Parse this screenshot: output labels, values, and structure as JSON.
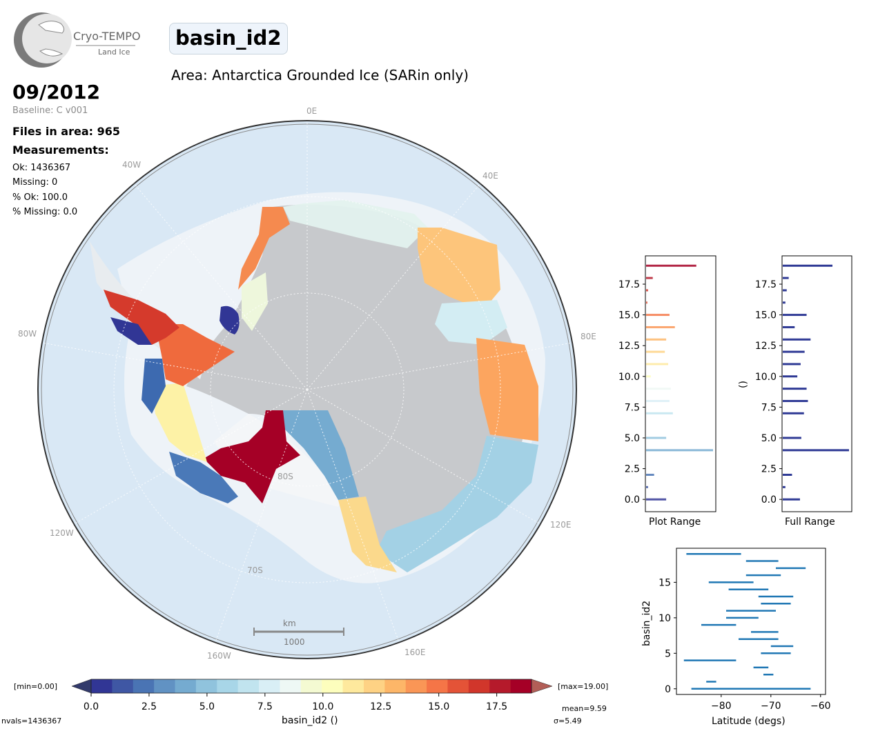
{
  "header": {
    "logo_title": "Cryo-TEMPO",
    "logo_subtitle": "Land Ice",
    "variable": "basin_id2",
    "area": "Area: Antarctica Grounded Ice (SARin only)",
    "date": "09/2012",
    "baseline": "Baseline: C v001",
    "files": "Files in area: 965",
    "measurements_title": "Measurements:",
    "ok": "Ok: 1436367",
    "missing": "Missing: 0",
    "pct_ok": "% Ok: 100.0",
    "pct_missing": "% Missing: 0.0"
  },
  "map": {
    "lon_labels": {
      "lon0": "0E",
      "lon40e": "40E",
      "lon80e": "80E",
      "lon120e": "120E",
      "lon160e": "160E",
      "lon160w": "160W",
      "lon120w": "120W",
      "lon80w": "80W",
      "lon40w": "40W"
    },
    "lat_labels": {
      "lat80": "80S",
      "lat70": "70S"
    },
    "scale_unit": "km",
    "scale_value": "1000",
    "colors": {
      "ocean": "#d9e8f5",
      "ice": "#c7c9cc"
    }
  },
  "colorbar": {
    "min_label": "[min=0.00]",
    "max_label": "[max=19.00]",
    "label": "basin_id2 ()",
    "nvals": "nvals=1436367",
    "mean": "mean=9.59",
    "sigma": "σ=5.49",
    "ticks": [
      "0.0",
      "2.5",
      "5.0",
      "7.5",
      "10.0",
      "12.5",
      "15.0",
      "17.5"
    ],
    "colors": [
      "#313695",
      "#3f57a4",
      "#4a74b4",
      "#6192c3",
      "#75abd0",
      "#90c3dd",
      "#a8d6e8",
      "#c1e4ef",
      "#d9eff6",
      "#eef8f5",
      "#f4fad2",
      "#fdfebd",
      "#fee99d",
      "#fed284",
      "#fdb668",
      "#fa9656",
      "#f57547",
      "#e45337",
      "#d1362b",
      "#b51a2b",
      "#a50026"
    ]
  },
  "chart_data": [
    {
      "type": "bar",
      "title": "",
      "xlabel": "Plot Range",
      "ylabel": "",
      "orientation": "horizontal",
      "categories": [
        0,
        1,
        2,
        3,
        4,
        5,
        6,
        7,
        8,
        9,
        10,
        11,
        12,
        13,
        14,
        15,
        16,
        17,
        18,
        19
      ],
      "values": [
        30,
        3,
        12,
        0,
        100,
        30,
        0,
        40,
        35,
        37,
        7,
        33,
        28,
        30,
        43,
        35,
        2,
        3,
        10,
        75
      ],
      "ylim": [
        -1,
        19.8
      ],
      "yticks": [
        "0.0",
        "2.5",
        "5.0",
        "7.5",
        "10.0",
        "12.5",
        "15.0",
        "17.5"
      ]
    },
    {
      "type": "bar",
      "title": "",
      "xlabel": "Full Range",
      "ylabel": "()",
      "orientation": "horizontal",
      "categories": [
        0,
        1,
        2,
        3,
        4,
        5,
        6,
        7,
        8,
        9,
        10,
        11,
        12,
        13,
        14,
        15,
        16,
        17,
        18,
        19
      ],
      "values": [
        26,
        4,
        14,
        0,
        100,
        28,
        0,
        32,
        38,
        36,
        22,
        27,
        33,
        42,
        18,
        36,
        4,
        6,
        9,
        75
      ],
      "ylim": [
        -1,
        19.8
      ],
      "yticks": [
        "0.0",
        "2.5",
        "5.0",
        "7.5",
        "10.0",
        "12.5",
        "15.0",
        "17.5"
      ]
    },
    {
      "type": "range",
      "title": "",
      "xlabel": "Latitude (degs)",
      "ylabel": "basin_id2",
      "xlim": [
        -89,
        -59
      ],
      "ylim": [
        -0.8,
        19.8
      ],
      "xticks": [
        "−80",
        "−70",
        "−60"
      ],
      "yticks": [
        "0",
        "5",
        "10",
        "15"
      ],
      "ranges": [
        {
          "y": 0,
          "from": -86,
          "to": -62
        },
        {
          "y": 1,
          "from": -83,
          "to": -81
        },
        {
          "y": 2,
          "from": -71.5,
          "to": -69.5
        },
        {
          "y": 3,
          "from": -73.5,
          "to": -70.5
        },
        {
          "y": 4,
          "from": -87.5,
          "to": -77
        },
        {
          "y": 5,
          "from": -72,
          "to": -66
        },
        {
          "y": 6,
          "from": -70,
          "to": -65.5
        },
        {
          "y": 7,
          "from": -76.5,
          "to": -68.5
        },
        {
          "y": 8,
          "from": -74,
          "to": -68.5
        },
        {
          "y": 9,
          "from": -84,
          "to": -77
        },
        {
          "y": 10,
          "from": -79,
          "to": -72.5
        },
        {
          "y": 11,
          "from": -79,
          "to": -69
        },
        {
          "y": 12,
          "from": -72,
          "to": -66
        },
        {
          "y": 13,
          "from": -72.5,
          "to": -65.5
        },
        {
          "y": 14,
          "from": -78.5,
          "to": -70.5
        },
        {
          "y": 15,
          "from": -82.5,
          "to": -73.5
        },
        {
          "y": 16,
          "from": -75,
          "to": -68
        },
        {
          "y": 17,
          "from": -69,
          "to": -63
        },
        {
          "y": 18,
          "from": -75,
          "to": -68.5
        },
        {
          "y": 19,
          "from": -87,
          "to": -76
        }
      ]
    }
  ]
}
